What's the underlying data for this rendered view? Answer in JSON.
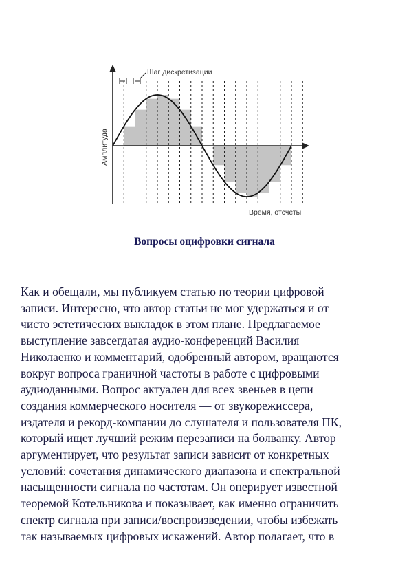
{
  "figure": {
    "label_step": "Шаг дискретизации",
    "label_amplitude": "Амплитуда",
    "label_time": "Время, отсчеты",
    "chart_data": {
      "type": "line",
      "description_series": "sine wave with sampled step approximation",
      "sample_count": 16,
      "cycles": 1
    }
  },
  "heading": "Вопросы оцифровки сигнала",
  "body_lines": [
    "Как и обещали, мы публикуем статью по теории цифровой",
    "записи. Интересно, что автор статьи не мог удержаться и от",
    "чисто эстетических выкладок в этом плане. Предлагаемое",
    "выступление завсегдатая аудио-конференций Василия",
    "Николаенко и комментарий, одобренный автором, вращаются",
    "вокруг вопроса граничной частоты в работе с цифровыми",
    "аудиоданными. Вопрос актуален для всех звеньев в цепи",
    "создания коммерческого носителя — от звукорежиссера,",
    "издателя и рекорд-компании до слушателя и пользователя ПК,",
    "который ищет лучший режим перезаписи на болванку. Автор",
    "аргументирует, что результат записи зависит от конкретных",
    "условий: сочетания динамического диапазона и спектральной",
    "насыщенности сигнала по частотам. Он оперирует известной",
    "теоремой Котельникова и показывает, как именно ограничить",
    "спектр сигнала при записи/воспроизведении, чтобы избежать",
    "так называемых цифровых искажений. Автор полагает, что в"
  ]
}
